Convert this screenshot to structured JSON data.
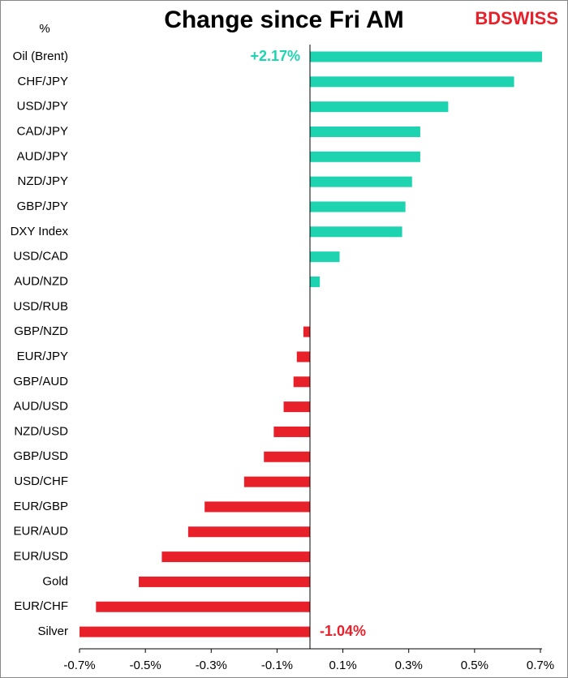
{
  "chart_data": {
    "type": "hbar",
    "title": "Change since Fri AM",
    "y_label": "%",
    "logo": "BDSWISS",
    "categories": [
      "Oil (Brent)",
      "CHF/JPY",
      "USD/JPY",
      "CAD/JPY",
      "AUD/JPY",
      "NZD/JPY",
      "GBP/JPY",
      "DXY Index",
      "USD/CAD",
      "AUD/NZD",
      "USD/RUB",
      "GBP/NZD",
      "EUR/JPY",
      "GBP/AUD",
      "AUD/USD",
      "NZD/USD",
      "GBP/USD",
      "USD/CHF",
      "EUR/GBP",
      "EUR/AUD",
      "EUR/USD",
      "Gold",
      "EUR/CHF",
      "Silver"
    ],
    "values": [
      2.17,
      0.62,
      0.42,
      0.335,
      0.335,
      0.31,
      0.29,
      0.28,
      0.09,
      0.03,
      0,
      -0.02,
      -0.04,
      -0.05,
      -0.08,
      -0.11,
      -0.14,
      -0.2,
      -0.32,
      -0.37,
      -0.45,
      -0.52,
      -0.65,
      -1.04
    ],
    "value_labels": [
      "+2.17%",
      null,
      null,
      null,
      null,
      null,
      null,
      null,
      null,
      null,
      null,
      null,
      null,
      null,
      null,
      null,
      null,
      null,
      null,
      null,
      null,
      null,
      null,
      "-1.04%"
    ],
    "color_positive": "#1dd3b0",
    "color_negative": "#e8202a",
    "xlim": [
      -0.7,
      0.7
    ],
    "xticks": [
      {
        "value": -0.7,
        "label": "-0.7%"
      },
      {
        "value": -0.5,
        "label": "-0.5%"
      },
      {
        "value": -0.3,
        "label": "-0.3%"
      },
      {
        "value": -0.1,
        "label": "-0.1%"
      },
      {
        "value": 0.1,
        "label": "0.1%"
      },
      {
        "value": 0.3,
        "label": "0.3%"
      },
      {
        "value": 0.5,
        "label": "0.5%"
      },
      {
        "value": 0.7,
        "label": "0.7%"
      }
    ]
  }
}
